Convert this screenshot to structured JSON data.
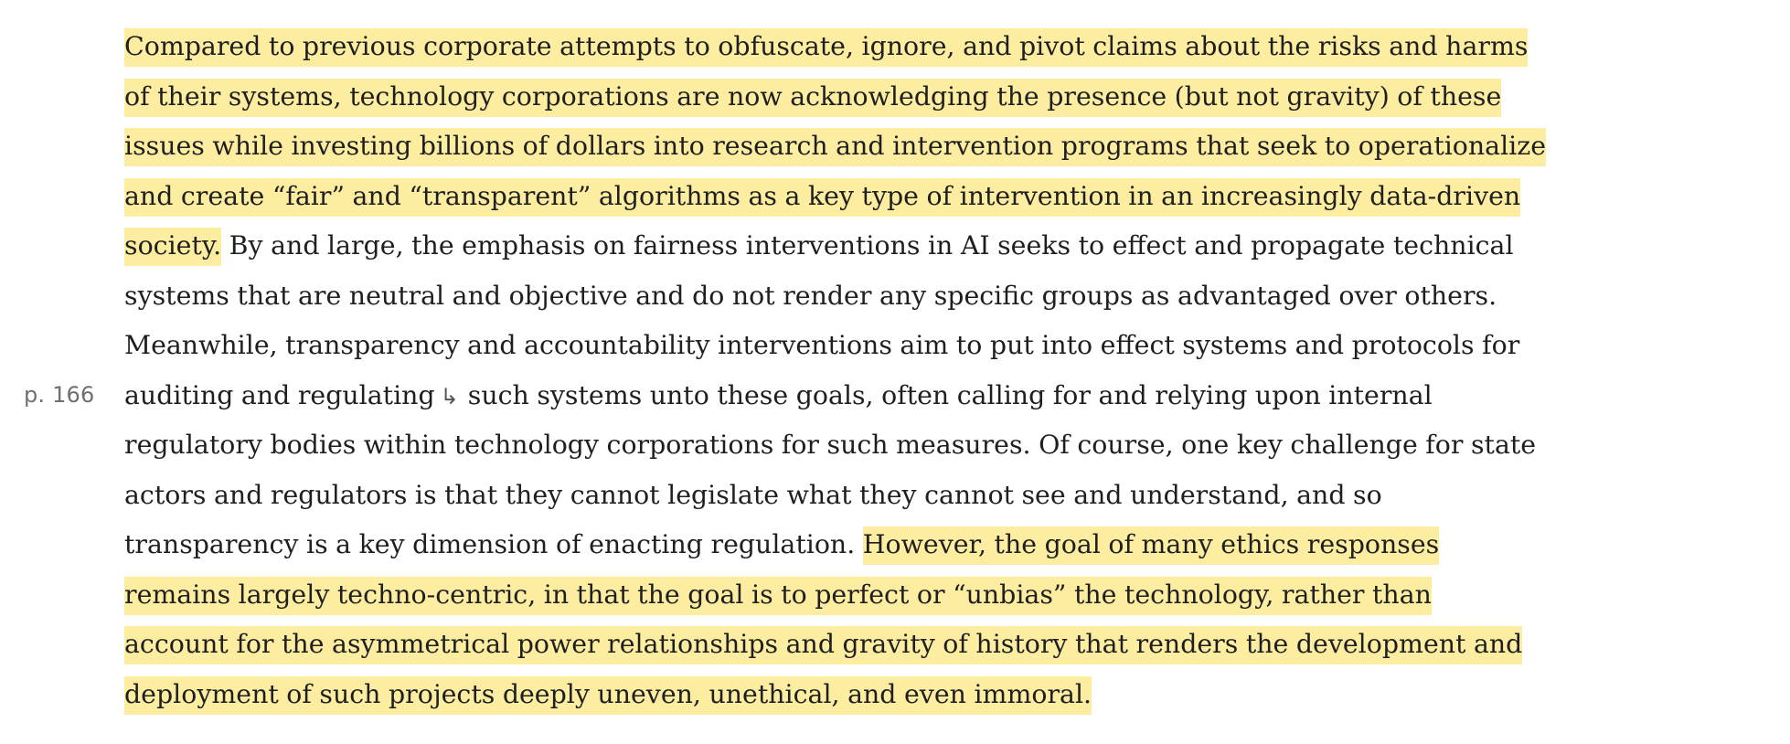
{
  "page_marker": "p. 166",
  "page_break_icon": "↳",
  "lines": [
    {
      "h": "Compared to previous corporate attempts to obfuscate, ignore, and pivot claims about the risks and harms"
    },
    {
      "h": "of their systems, technology corporations are now acknowledging the presence (but not gravity) of these"
    },
    {
      "h": "issues while investing billions of dollars into research and intervention programs that seek to operationalize"
    },
    {
      "h": "and create “fair” and “transparent” algorithms as a key type of intervention in an increasingly data-driven"
    },
    {
      "h": "society.",
      "n": " By and large, the emphasis on fairness interventions in AI seeks to effect and propagate technical"
    },
    {
      "n": "systems that are neutral and objective and do not render any specific groups as advantaged over others."
    },
    {
      "n": "Meanwhile, transparency and accountability interventions aim to put into effect systems and protocols for"
    },
    {
      "n": "auditing and regulating",
      "n2": "such systems unto these goals, often calling for and relying upon internal"
    },
    {
      "n": "regulatory bodies within technology corporations for such measures. Of course, one key challenge for state"
    },
    {
      "n": "actors and regulators is that they cannot legislate what they cannot see and understand, and so"
    },
    {
      "n": "transparency is a key dimension of enacting regulation. ",
      "h": "However, the goal of many ethics responses"
    },
    {
      "h": "remains largely techno-centric, in that the goal is to perfect or “unbias” the technology, rather than"
    },
    {
      "h": "account for the asymmetrical power relationships and gravity of history that renders the development and"
    },
    {
      "h": "deployment of such projects deeply uneven, unethical, and even immoral."
    }
  ]
}
